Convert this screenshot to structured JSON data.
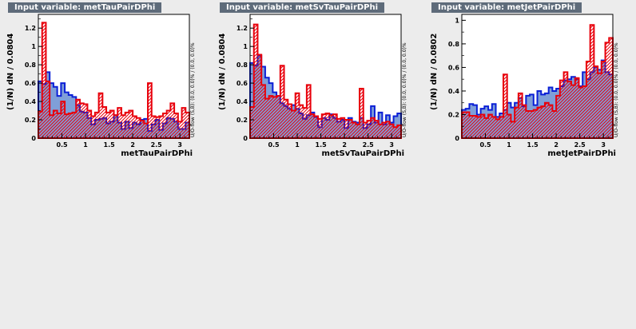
{
  "panes": [
    {
      "tab": "Input variable: metTauPairDPhi",
      "ylabel": "(1/N) dN / 0.0804",
      "xlabel": "metTauPairDPhi",
      "side": "U/O-flow (S,B): (0.0, 0.0)% / (0.0, 0.0)%"
    },
    {
      "tab": "Input variable: metSvTauPairDPhi",
      "ylabel": "(1/N) dN / 0.0804",
      "xlabel": "metSvTauPairDPhi",
      "side": "U/O-flow (S,B): (0.0, 0.0)% / (0.0, 0.0)%"
    },
    {
      "tab": "Input variable: metJetPairDPhi",
      "ylabel": "(1/N) dN / 0.0802",
      "xlabel": "metJetPairDPhi",
      "side": "U/O-flow (S,B): (0.0, 0.0)% / (0.0, 0.0)%"
    }
  ],
  "colors": {
    "signal": "#0a1fd6",
    "signal_fill": "#7f9fd8",
    "background": "#e8000b"
  },
  "chart_data": [
    {
      "type": "bar",
      "xlim": [
        0.0,
        3.2
      ],
      "ylim": [
        0,
        1.35
      ],
      "yticks": [
        "0",
        "0.2",
        "0.4",
        "0.6",
        "0.8",
        "1",
        "1.2"
      ],
      "xticks": [
        "0.5",
        "1",
        "1.5",
        "2",
        "2.5",
        "3"
      ],
      "grid": false,
      "series": [
        {
          "values": [
            0.62,
            0.59,
            0.72,
            0.6,
            0.56,
            0.46,
            0.6,
            0.5,
            0.47,
            0.45,
            0.36,
            0.29,
            0.28,
            0.22,
            0.15,
            0.2,
            0.21,
            0.22,
            0.16,
            0.18,
            0.25,
            0.17,
            0.1,
            0.18,
            0.11,
            0.17,
            0.15,
            0.2,
            0.21,
            0.08,
            0.15,
            0.2,
            0.09,
            0.16,
            0.22,
            0.21,
            0.18,
            0.1,
            0.1,
            0.17
          ]
        },
        {
          "values": [
            0.29,
            1.26,
            0.62,
            0.25,
            0.3,
            0.27,
            0.4,
            0.26,
            0.27,
            0.28,
            0.42,
            0.38,
            0.37,
            0.3,
            0.24,
            0.28,
            0.49,
            0.34,
            0.28,
            0.3,
            0.25,
            0.33,
            0.25,
            0.28,
            0.3,
            0.24,
            0.22,
            0.19,
            0.16,
            0.6,
            0.24,
            0.23,
            0.24,
            0.27,
            0.3,
            0.38,
            0.27,
            0.18,
            0.33,
            0.28
          ]
        }
      ]
    },
    {
      "type": "bar",
      "xlim": [
        0.0,
        3.2
      ],
      "ylim": [
        0,
        1.35
      ],
      "yticks": [
        "0",
        "0.2",
        "0.4",
        "0.6",
        "0.8",
        "1",
        "1.2"
      ],
      "xticks": [
        "0.5",
        "1",
        "1.5",
        "2",
        "2.5",
        "3"
      ],
      "grid": false,
      "series": [
        {
          "values": [
            0.82,
            0.79,
            0.9,
            0.78,
            0.66,
            0.6,
            0.5,
            0.46,
            0.38,
            0.35,
            0.32,
            0.36,
            0.32,
            0.27,
            0.21,
            0.25,
            0.28,
            0.23,
            0.12,
            0.22,
            0.2,
            0.26,
            0.22,
            0.18,
            0.2,
            0.11,
            0.22,
            0.18,
            0.17,
            0.22,
            0.11,
            0.15,
            0.35,
            0.17,
            0.28,
            0.15,
            0.25,
            0.17,
            0.24,
            0.27
          ]
        },
        {
          "values": [
            0.34,
            1.24,
            0.91,
            0.58,
            0.43,
            0.46,
            0.45,
            0.46,
            0.79,
            0.42,
            0.37,
            0.3,
            0.49,
            0.36,
            0.33,
            0.58,
            0.26,
            0.24,
            0.21,
            0.26,
            0.27,
            0.25,
            0.26,
            0.21,
            0.22,
            0.2,
            0.2,
            0.17,
            0.15,
            0.54,
            0.17,
            0.19,
            0.22,
            0.19,
            0.15,
            0.17,
            0.18,
            0.15,
            0.12,
            0.14
          ]
        }
      ]
    },
    {
      "type": "bar",
      "xlim": [
        0.0,
        3.2
      ],
      "ylim": [
        0,
        1.05
      ],
      "yticks": [
        "0",
        "0.2",
        "0.4",
        "0.6",
        "0.8",
        "1"
      ],
      "xticks": [
        "0.5",
        "1",
        "1.5",
        "2",
        "2.5",
        "3"
      ],
      "grid": false,
      "series": [
        {
          "values": [
            0.24,
            0.25,
            0.29,
            0.28,
            0.2,
            0.25,
            0.27,
            0.24,
            0.29,
            0.18,
            0.21,
            0.24,
            0.3,
            0.26,
            0.3,
            0.34,
            0.27,
            0.36,
            0.37,
            0.28,
            0.4,
            0.37,
            0.38,
            0.43,
            0.4,
            0.42,
            0.44,
            0.49,
            0.5,
            0.52,
            0.5,
            0.44,
            0.56,
            0.5,
            0.56,
            0.6,
            0.58,
            0.66,
            0.56,
            0.54
          ]
        },
        {
          "values": [
            0.22,
            0.22,
            0.19,
            0.19,
            0.18,
            0.2,
            0.17,
            0.2,
            0.18,
            0.16,
            0.18,
            0.54,
            0.2,
            0.14,
            0.26,
            0.38,
            0.28,
            0.23,
            0.23,
            0.24,
            0.26,
            0.27,
            0.3,
            0.28,
            0.23,
            0.36,
            0.49,
            0.56,
            0.48,
            0.45,
            0.51,
            0.43,
            0.44,
            0.65,
            0.96,
            0.61,
            0.55,
            0.65,
            0.81,
            0.85
          ]
        }
      ]
    }
  ]
}
